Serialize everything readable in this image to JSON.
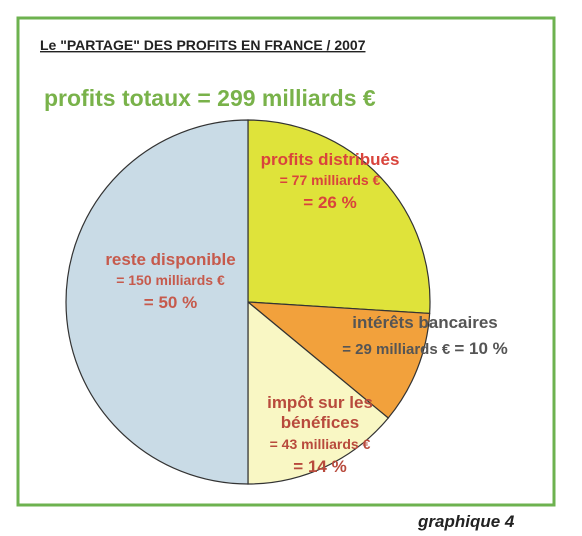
{
  "chart_data": {
    "type": "pie",
    "title": "Le \"PARTAGE\" DES PROFITS EN FRANCE / 2007",
    "subtitle": "profits totaux = 299 milliards €",
    "footer": "graphique 4",
    "categories": [
      "profits distribués",
      "intérêts bancaires",
      "impôt sur les bénéfices",
      "reste disponible"
    ],
    "values": [
      26,
      10,
      14,
      50
    ],
    "value_labels": [
      "= 26 %",
      "= 10 %",
      "= 14 %",
      "= 50 %"
    ],
    "amounts": [
      77,
      29,
      43,
      150
    ],
    "amount_labels": [
      "= 77 milliards €",
      "= 29 milliards €",
      "= 43 milliards €",
      "= 150 milliards €"
    ],
    "colors": [
      "#dfe33a",
      "#f2a13c",
      "#f9f7c4",
      "#c9dbe6"
    ]
  }
}
